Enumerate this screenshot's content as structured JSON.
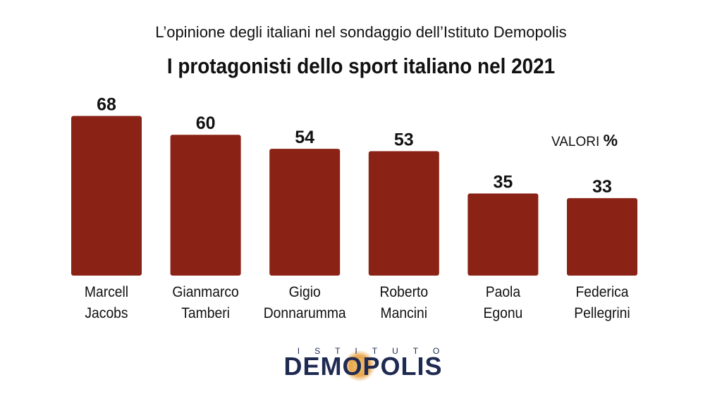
{
  "header": {
    "subtitle": "L’opinione degli italiani nel sondaggio dell’Istituto Demopolis",
    "title": "I protagonisti dello sport italiano nel 2021"
  },
  "units_label": {
    "text": "VALORI",
    "symbol": "%"
  },
  "chart_data": {
    "type": "bar",
    "categories": [
      [
        "Marcell",
        "Jacobs"
      ],
      [
        "Gianmarco",
        "Tamberi"
      ],
      [
        "Gigio",
        "Donnarumma"
      ],
      [
        "Roberto",
        "Mancini"
      ],
      [
        "Paola",
        "Egonu"
      ],
      [
        "Federica",
        "Pellegrini"
      ]
    ],
    "values": [
      68,
      60,
      54,
      53,
      35,
      33
    ],
    "value_labels": [
      "68",
      "60",
      "54",
      "53",
      "35",
      "33"
    ],
    "title": "I protagonisti dello sport italiano nel 2021",
    "xlabel": "",
    "ylabel": "",
    "unit": "%",
    "ylim": [
      0,
      70
    ],
    "grid": false,
    "colors": {
      "bar": "#8a2216"
    }
  },
  "logo": {
    "top_text": "ISTITUTO",
    "main_text": "DEMOPOLIS",
    "color": "#1f2a52",
    "accent": "#e9a64a"
  }
}
